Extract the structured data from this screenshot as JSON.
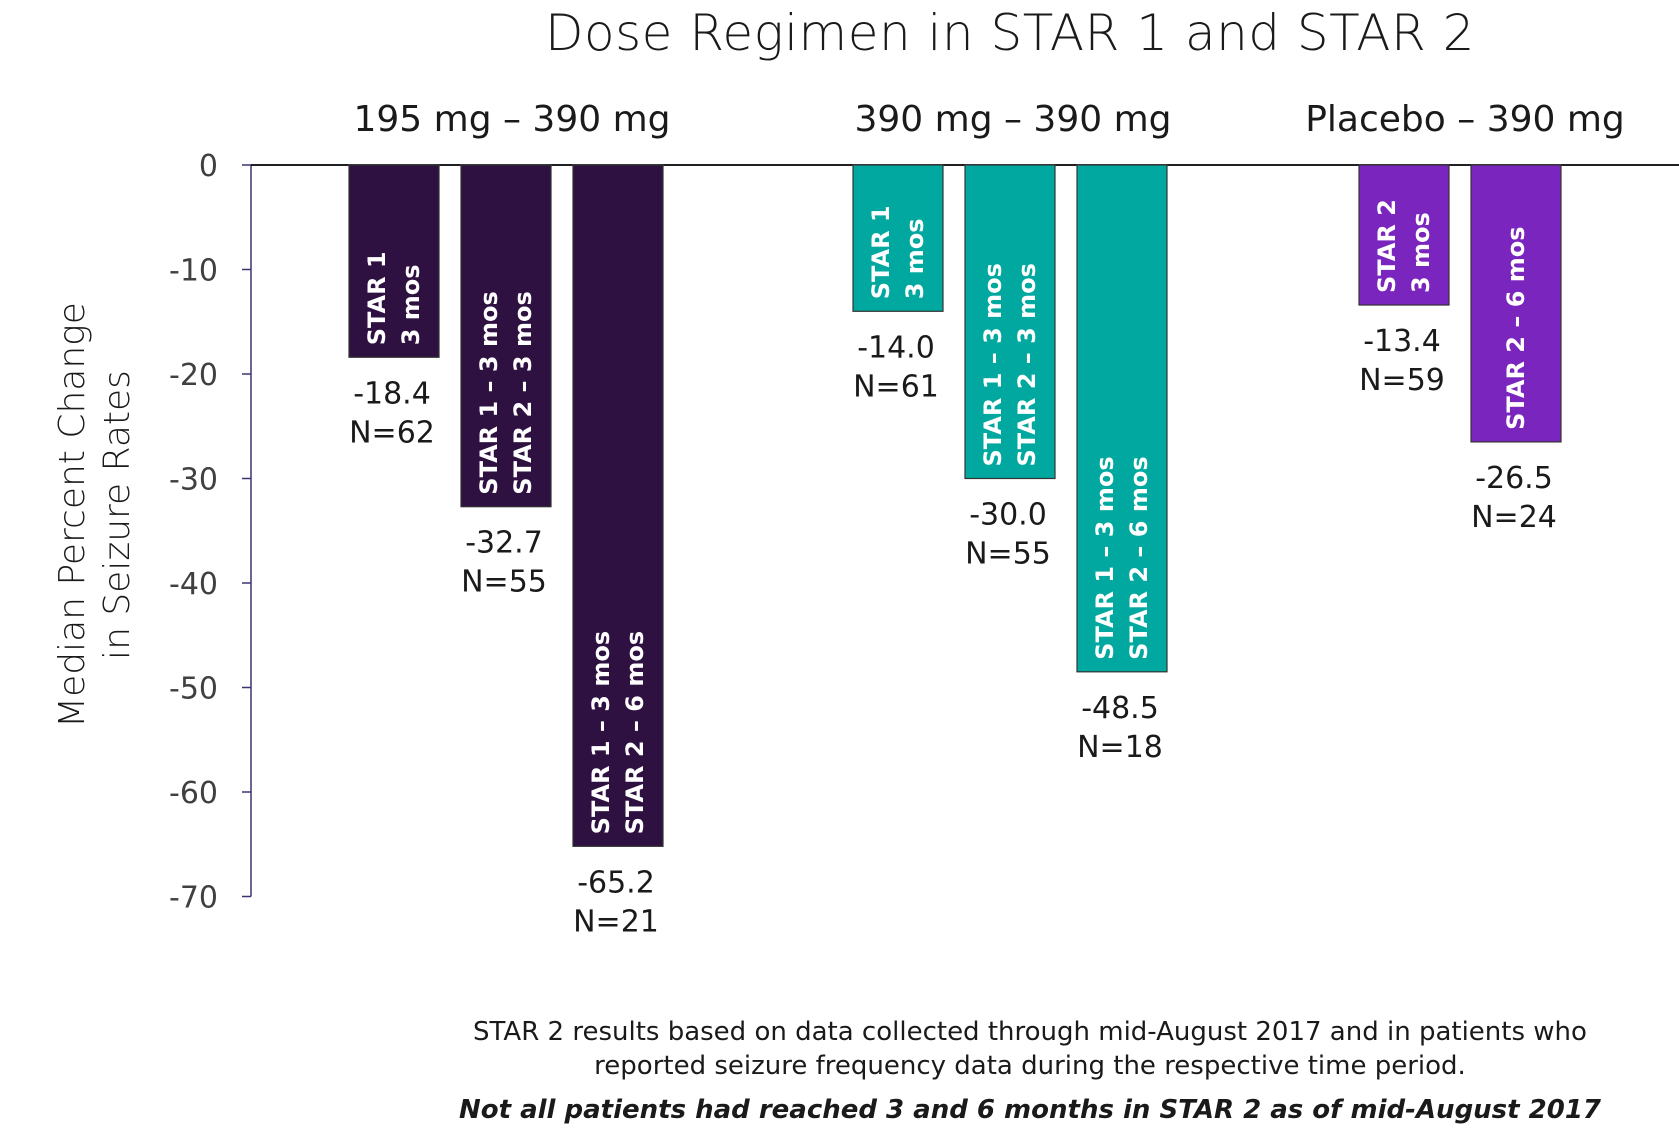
{
  "chart_data": {
    "type": "bar",
    "title": "Dose Regimen in STAR 1 and STAR 2",
    "ylabel": [
      "Median Percent Change",
      "in Seizure Rates"
    ],
    "ylim": [
      -70,
      0
    ],
    "yticks": [
      0,
      -10,
      -20,
      -30,
      -40,
      -50,
      -60,
      -70
    ],
    "groups": [
      {
        "name": "195 mg – 390 mg",
        "color": "#2e1140",
        "bars": [
          {
            "label": [
              "STAR 1",
              "3 mos"
            ],
            "value": -18.4,
            "value_text": "-18.4",
            "n_text": "N=62"
          },
          {
            "label": [
              "STAR 1 – 3 mos",
              "STAR 2 – 3 mos"
            ],
            "value": -32.7,
            "value_text": "-32.7",
            "n_text": "N=55"
          },
          {
            "label": [
              "STAR 1 – 3 mos",
              "STAR 2 – 6 mos"
            ],
            "value": -65.2,
            "value_text": "-65.2",
            "n_text": "N=21"
          }
        ]
      },
      {
        "name": "390 mg – 390 mg",
        "color": "#00a89f",
        "bars": [
          {
            "label": [
              "STAR 1",
              "3 mos"
            ],
            "value": -14.0,
            "value_text": "-14.0",
            "n_text": "N=61"
          },
          {
            "label": [
              "STAR 1 – 3 mos",
              "STAR 2 – 3 mos"
            ],
            "value": -30.0,
            "value_text": "-30.0",
            "n_text": "N=55"
          },
          {
            "label": [
              "STAR 1 – 3 mos",
              "STAR 2 – 6 mos"
            ],
            "value": -48.5,
            "value_text": "-48.5",
            "n_text": "N=18"
          }
        ]
      },
      {
        "name": "Placebo – 390 mg",
        "color": "#7b25bf",
        "bars": [
          {
            "label": [
              "STAR 2",
              "3 mos"
            ],
            "value": -13.4,
            "value_text": "-13.4",
            "n_text": "N=59"
          },
          {
            "label": [
              "STAR 2 – 6 mos"
            ],
            "value": -26.5,
            "value_text": "-26.5",
            "n_text": "N=24"
          }
        ]
      }
    ]
  },
  "footnotes": {
    "line1": "STAR 2 results based on data collected through mid-August 2017 and in patients who",
    "line2": "reported seizure frequency data during the respective time period.",
    "line3": "Not all patients had reached 3 and 6 months in STAR 2 as of mid-August 2017"
  }
}
